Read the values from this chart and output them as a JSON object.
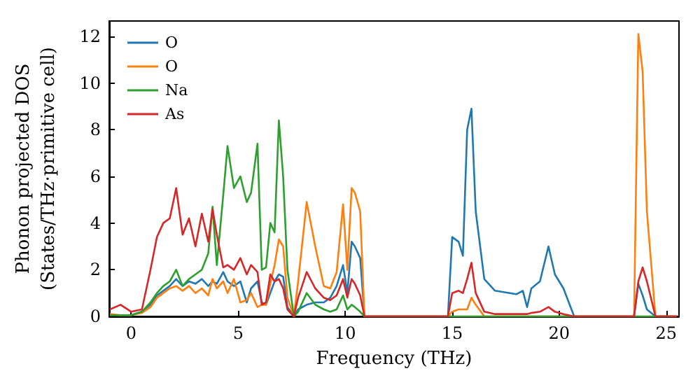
{
  "chart_data": {
    "type": "line",
    "xlabel": "Frequency (THz)",
    "ylabel": "Phonon projected DOS\n(States/THz·primitive cell)",
    "x": [
      -1,
      -0.5,
      0,
      0.5,
      0.9,
      1.2,
      1.5,
      1.8,
      2.1,
      2.4,
      2.7,
      3.0,
      3.3,
      3.6,
      3.8,
      4.0,
      4.3,
      4.5,
      4.8,
      5.1,
      5.4,
      5.6,
      5.9,
      6.1,
      6.3,
      6.5,
      6.7,
      6.9,
      7.1,
      7.3,
      7.6,
      7.8,
      8.2,
      8.6,
      9.0,
      9.3,
      9.6,
      9.9,
      10.1,
      10.3,
      10.45,
      10.7,
      10.9,
      12,
      14.8,
      15.0,
      15.3,
      15.5,
      15.7,
      15.9,
      16.1,
      16.5,
      17,
      18,
      18.3,
      18.5,
      18.7,
      19.1,
      19.5,
      19.8,
      20.2,
      20.7,
      22,
      23.5,
      23.7,
      23.9,
      24.1,
      24.5,
      25.5
    ],
    "series": [
      {
        "name": "O",
        "color": "#1f77b4",
        "values": [
          null,
          null,
          0.05,
          0.2,
          0.5,
          0.9,
          1.1,
          1.3,
          1.6,
          1.3,
          1.5,
          1.4,
          1.6,
          1.3,
          1.5,
          1.4,
          1.9,
          1.5,
          1.3,
          1.5,
          0.6,
          1.2,
          1.5,
          0.6,
          0.5,
          1.0,
          1.5,
          1.8,
          1.7,
          0.4,
          0,
          0.3,
          0.5,
          0.6,
          0.6,
          0.8,
          1.3,
          2.2,
          1.0,
          3.2,
          3.0,
          2.5,
          0,
          0,
          0,
          3.4,
          3.2,
          2.6,
          8.0,
          8.9,
          4.5,
          1.6,
          1.1,
          0.95,
          1.1,
          0.4,
          1.2,
          1.5,
          3.0,
          1.8,
          1.2,
          0,
          0,
          0,
          1.4,
          0.9,
          0.3,
          0,
          0
        ]
      },
      {
        "name": "O",
        "color": "#ff7f0e",
        "values": [
          0.1,
          0.05,
          0.05,
          0.15,
          0.4,
          0.8,
          1.0,
          1.2,
          1.3,
          1.1,
          1.3,
          1.0,
          1.2,
          0.9,
          1.6,
          1.2,
          1.5,
          1.0,
          1.6,
          0.6,
          0.7,
          1.0,
          0.4,
          0.5,
          0.5,
          1.4,
          2.2,
          3.3,
          3.0,
          0.8,
          0,
          1.5,
          4.9,
          3.0,
          1.3,
          1.2,
          1.9,
          4.8,
          2.0,
          5.5,
          5.3,
          4.5,
          0,
          0,
          0,
          0.2,
          0.3,
          0.3,
          0.3,
          0.8,
          0.5,
          0,
          0,
          0,
          0,
          0,
          0,
          0,
          0,
          0,
          0,
          0,
          0,
          0,
          12.1,
          10.5,
          4.5,
          0,
          0
        ]
      },
      {
        "name": "Na",
        "color": "#2ca02c",
        "values": [
          0.05,
          0.05,
          0.05,
          0.2,
          0.6,
          1.0,
          1.3,
          1.5,
          2.0,
          1.3,
          1.6,
          1.8,
          2.0,
          2.7,
          4.7,
          2.2,
          5.2,
          7.3,
          5.5,
          6.0,
          4.9,
          5.3,
          7.4,
          2.0,
          2.1,
          4.0,
          3.6,
          8.4,
          6.0,
          2.0,
          0,
          0.2,
          1.0,
          0.5,
          0.3,
          0.2,
          0.3,
          0.9,
          0.3,
          0.5,
          0.4,
          0.2,
          0,
          0,
          0,
          0,
          0,
          0,
          0,
          0,
          0,
          0,
          0,
          0,
          0,
          0,
          0,
          0,
          0,
          0,
          0,
          0,
          0,
          0,
          0,
          0,
          0,
          0,
          0
        ]
      },
      {
        "name": "As",
        "color": "#d62728",
        "values": [
          0.3,
          0.5,
          0.2,
          0.3,
          2.0,
          3.4,
          4.0,
          4.2,
          5.5,
          3.5,
          4.2,
          3.0,
          4.4,
          3.2,
          4.6,
          3.5,
          2.1,
          2.2,
          2.0,
          2.5,
          1.8,
          2.2,
          1.9,
          0.5,
          0.6,
          1.8,
          1.5,
          1.6,
          1.2,
          0.3,
          0,
          0.8,
          1.9,
          1.2,
          0.8,
          0.7,
          0.9,
          1.6,
          0.8,
          1.6,
          1.4,
          0.9,
          0,
          0,
          0,
          1.0,
          1.1,
          1.0,
          1.6,
          2.3,
          1.0,
          0.2,
          0.1,
          0.1,
          0.1,
          0.1,
          0.15,
          0.2,
          0.4,
          0.2,
          0.1,
          0,
          0,
          0,
          1.5,
          2.1,
          1.5,
          0,
          0
        ]
      }
    ],
    "xlim": [
      -1.03,
      25.6
    ],
    "ylim": [
      0,
      12.66
    ],
    "xticks": [
      0,
      5,
      10,
      15,
      20,
      25
    ],
    "yticks": [
      0,
      2,
      4,
      6,
      8,
      10,
      12
    ],
    "grid": false,
    "legend": "top left",
    "marker": "none",
    "line_style": "solid"
  }
}
